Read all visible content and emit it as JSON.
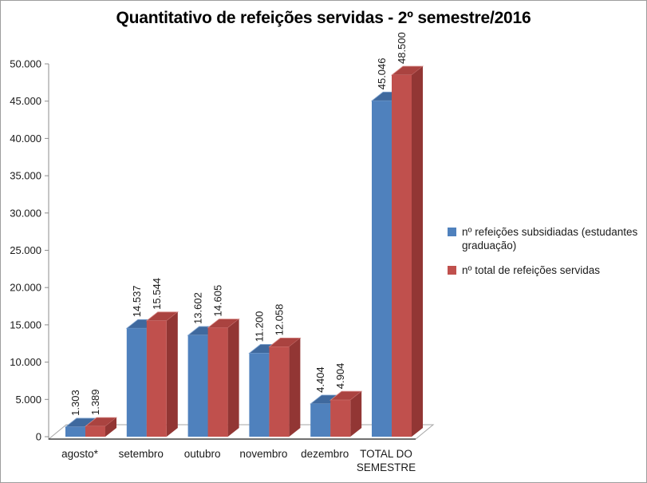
{
  "window": {
    "background": "#FFFFFF",
    "border_color": "#9D9D9D"
  },
  "chart_data": {
    "type": "bar",
    "style": "3d-clustered-column",
    "title": "Quantitativo de refeições servidas - 2º semestre/2016",
    "categories": [
      "agosto*",
      "setembro",
      "outubro",
      "novembro",
      "dezembro",
      "TOTAL DO SEMESTRE"
    ],
    "category_label_lines": [
      [
        "agosto*"
      ],
      [
        "setembro"
      ],
      [
        "outubro"
      ],
      [
        "novembro"
      ],
      [
        "dezembro"
      ],
      [
        "TOTAL DO",
        "SEMESTRE"
      ]
    ],
    "series": [
      {
        "name": "nº refeições subsidiadas (estudantes graduação)",
        "color": "#4F81BD",
        "top_color": "#3F699E",
        "side_color": "#36598C",
        "edge_color": "#89ABD4",
        "values": [
          1303,
          14537,
          13602,
          11200,
          4404,
          45046
        ],
        "labels": [
          "1.303",
          "14.537",
          "13.602",
          "11.200",
          "4.404",
          "45.046"
        ]
      },
      {
        "name": "nº total de refeições servidas",
        "color": "#C0504D",
        "top_color": "#AA4340",
        "side_color": "#923634",
        "edge_color": "#D58582",
        "values": [
          1389,
          15544,
          14605,
          12058,
          4904,
          48500
        ],
        "labels": [
          "1.389",
          "15.544",
          "14.605",
          "12.058",
          "4.904",
          "48.500"
        ]
      }
    ],
    "y_axis": {
      "min": 0,
      "max": 50000,
      "step": 5000,
      "tick_labels": [
        "0",
        "5.000",
        "10.000",
        "15.000",
        "20.000",
        "25.000",
        "30.000",
        "35.000",
        "40.000",
        "45.000",
        "50.000"
      ]
    },
    "legend": {
      "position": "right"
    },
    "grid": false,
    "axis_color": "#8C8C8C",
    "baseline_color": "#404040",
    "floor_edge_color": "#A6A6A6",
    "text_color": "#1A1A1A"
  }
}
